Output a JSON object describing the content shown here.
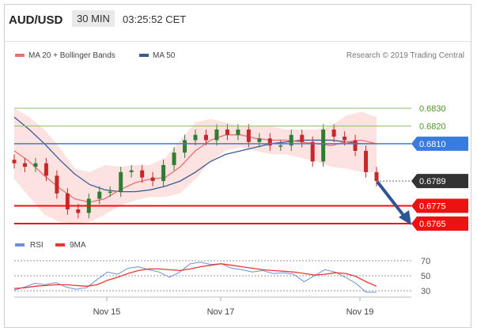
{
  "header": {
    "pair": "AUD/USD",
    "timeframe": "30 MIN",
    "time": "03:25:52 CET"
  },
  "legend": {
    "ma20_label": "MA 20 + Bollinger Bands",
    "ma50_label": "MA 50",
    "credit": "Research © 2019 Trading Central",
    "rsi_label": "RSI",
    "rsi_ma_label": "9MA"
  },
  "colors": {
    "ma20": "#e8706f",
    "bands_fill": "#fde2e2",
    "ma50": "#3b5c8f",
    "resistance": "#8cc06a",
    "pivot": "#3a7be0",
    "support": "#ee1111",
    "price_tag": "#333333",
    "candle_up": "#2e7d32",
    "candle_down": "#c62828",
    "rsi": "#6f8fd8",
    "rsi_ma": "#e53935",
    "arrow": "#2f5597"
  },
  "chart_data": [
    {
      "type": "line",
      "chart": "price",
      "x_ticks": [
        "Nov 15",
        "Nov 17",
        "Nov 19"
      ],
      "y_range": [
        0.676,
        0.684
      ],
      "levels": [
        {
          "value": 0.683,
          "label": "0.6830",
          "kind": "resistance"
        },
        {
          "value": 0.682,
          "label": "0.6820",
          "kind": "resistance"
        },
        {
          "value": 0.681,
          "label": "0.6810",
          "kind": "pivot"
        },
        {
          "value": 0.6775,
          "label": "0.6775",
          "kind": "support"
        },
        {
          "value": 0.6765,
          "label": "0.6765",
          "kind": "support"
        }
      ],
      "last_price": 0.6789,
      "last_price_label": "0.6789",
      "series": [
        {
          "name": "MA 20 + Bollinger Bands",
          "values": [
            0.6806,
            0.68,
            0.6792,
            0.6785,
            0.6779,
            0.6777,
            0.6779,
            0.6784,
            0.6788,
            0.679,
            0.6791,
            0.6797,
            0.6806,
            0.6812,
            0.6815,
            0.6815,
            0.6813,
            0.6812,
            0.6812,
            0.6811,
            0.681,
            0.6809,
            0.6811,
            0.6812,
            0.681
          ]
        },
        {
          "name": "MA 50",
          "values": [
            0.6825,
            0.6818,
            0.681,
            0.6801,
            0.6793,
            0.6787,
            0.6784,
            0.6783,
            0.6783,
            0.6784,
            0.6786,
            0.6789,
            0.6794,
            0.68,
            0.6804,
            0.6806,
            0.6808,
            0.681,
            0.6811,
            0.6812,
            0.6812,
            0.6812,
            0.6811,
            0.681,
            0.681
          ]
        },
        {
          "name": "Bollinger upper",
          "values": [
            0.683,
            0.6825,
            0.6818,
            0.6808,
            0.6796,
            0.6794,
            0.6798,
            0.6797,
            0.6798,
            0.6798,
            0.6802,
            0.6812,
            0.6822,
            0.6824,
            0.6822,
            0.682,
            0.682,
            0.682,
            0.6818,
            0.6818,
            0.6818,
            0.682,
            0.6826,
            0.6828,
            0.6825
          ]
        },
        {
          "name": "Bollinger lower",
          "values": [
            0.679,
            0.678,
            0.677,
            0.6766,
            0.6765,
            0.6766,
            0.677,
            0.6775,
            0.6778,
            0.678,
            0.678,
            0.6782,
            0.679,
            0.68,
            0.6806,
            0.6808,
            0.6806,
            0.6804,
            0.6804,
            0.6802,
            0.68,
            0.6797,
            0.6796,
            0.6794,
            0.6794
          ]
        },
        {
          "name": "Price",
          "values": [
            0.6799,
            0.6797,
            0.6799,
            0.6792,
            0.6782,
            0.6773,
            0.6771,
            0.6779,
            0.6783,
            0.6783,
            0.6794,
            0.6795,
            0.6791,
            0.6789,
            0.6798,
            0.6805,
            0.6812,
            0.6815,
            0.6812,
            0.6818,
            0.6815,
            0.6818,
            0.6811,
            0.6813,
            0.6809,
            0.6809,
            0.6815,
            0.6811,
            0.68,
            0.6818,
            0.6814,
            0.6812,
            0.6806,
            0.6794,
            0.6789
          ]
        }
      ]
    },
    {
      "type": "line",
      "chart": "rsi",
      "y_ticks": [
        70,
        50,
        30
      ],
      "y_range": [
        20,
        80
      ],
      "series": [
        {
          "name": "RSI",
          "values": [
            31,
            35,
            40,
            38,
            41,
            35,
            32,
            34,
            45,
            55,
            52,
            60,
            62,
            58,
            55,
            48,
            55,
            66,
            68,
            65,
            66,
            60,
            58,
            55,
            57,
            53,
            54,
            52,
            42,
            50,
            58,
            55,
            48,
            40,
            28,
            28
          ]
        },
        {
          "name": "9MA",
          "values": [
            33,
            34,
            36,
            37,
            38,
            38,
            37,
            36,
            38,
            44,
            48,
            53,
            57,
            59,
            59,
            58,
            57,
            59,
            62,
            64,
            66,
            64,
            62,
            60,
            58,
            57,
            56,
            55,
            53,
            51,
            52,
            54,
            53,
            49,
            42,
            36
          ]
        }
      ]
    }
  ]
}
